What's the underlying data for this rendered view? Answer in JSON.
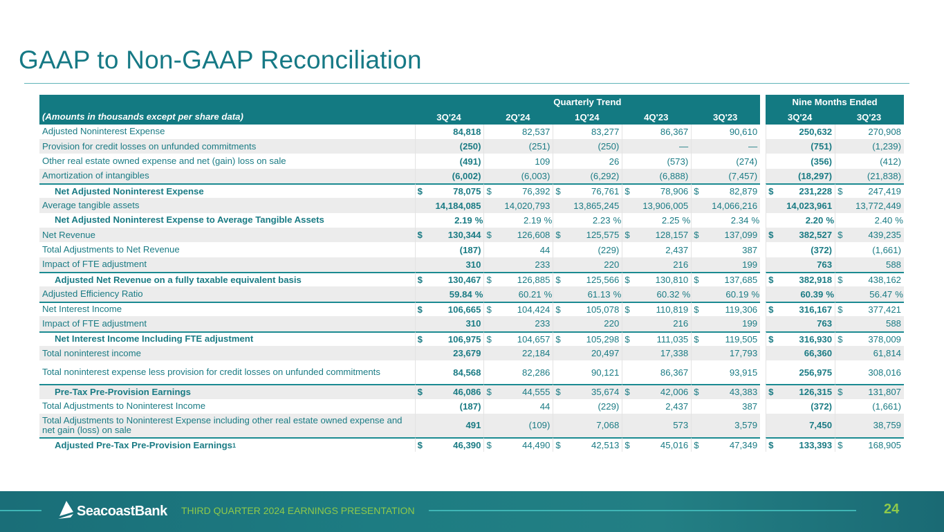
{
  "title": "GAAP to Non-GAAP Reconciliation",
  "table": {
    "group_headers": {
      "quarterly": "Quarterly Trend",
      "nine_months": "Nine Months Ended"
    },
    "units_note": "(Amounts in thousands except per share data)",
    "columns": [
      "3Q'24",
      "2Q'24",
      "1Q'24",
      "4Q'23",
      "3Q'23",
      "3Q'24",
      "3Q'23"
    ],
    "currency_symbol": "$",
    "percent_symbol": "%",
    "rows": [
      {
        "label": "Adjusted Noninterest Expense",
        "values": [
          "84,818",
          "82,537",
          "83,277",
          "86,367",
          "90,610",
          "250,632",
          "270,908"
        ]
      },
      {
        "label": "Provision for credit losses on unfunded commitments",
        "values": [
          "(250)",
          "(251)",
          "(250)",
          "—",
          "—",
          "(751)",
          "(1,239)"
        ]
      },
      {
        "label": "Other real estate owned expense and net (gain) loss on sale",
        "values": [
          "(491)",
          "109",
          "26",
          "(573)",
          "(274)",
          "(356)",
          "(412)"
        ]
      },
      {
        "label": "Amortization of intangibles",
        "values": [
          "(6,002)",
          "(6,003)",
          "(6,292)",
          "(6,888)",
          "(7,457)",
          "(18,297)",
          "(21,838)"
        ]
      },
      {
        "label": "Net Adjusted Noninterest Expense",
        "bold": true,
        "dollar": true,
        "top": true,
        "values": [
          "78,075",
          "76,392",
          "76,761",
          "78,906",
          "82,879",
          "231,228",
          "247,419"
        ]
      },
      {
        "label": "Average tangible assets",
        "values": [
          "14,184,085",
          "14,020,793",
          "13,865,245",
          "13,906,005",
          "14,066,216",
          "14,023,961",
          "13,772,449"
        ]
      },
      {
        "label": "Net Adjusted Noninterest Expense to Average Tangible Assets",
        "bold": true,
        "pct": true,
        "values": [
          "2.19",
          "2.19",
          "2.23",
          "2.25",
          "2.34",
          "2.20",
          "2.40"
        ]
      },
      {
        "label": "Net Revenue",
        "dollar": true,
        "values": [
          "130,344",
          "126,608",
          "125,575",
          "128,157",
          "137,099",
          "382,527",
          "439,235"
        ]
      },
      {
        "label": "Total Adjustments to Net Revenue",
        "values": [
          "(187)",
          "44",
          "(229)",
          "2,437",
          "387",
          "(372)",
          "(1,661)"
        ]
      },
      {
        "label": "Impact of FTE adjustment",
        "values": [
          "310",
          "233",
          "220",
          "216",
          "199",
          "763",
          "588"
        ]
      },
      {
        "label": "Adjusted Net Revenue on a fully taxable equivalent basis",
        "bold": true,
        "dollar": true,
        "top": true,
        "values": [
          "130,467",
          "126,885",
          "125,566",
          "130,810",
          "137,685",
          "382,918",
          "438,162"
        ]
      },
      {
        "label": "Adjusted Efficiency Ratio",
        "pct": true,
        "values": [
          "59.84",
          "60.21",
          "61.13",
          "60.32",
          "60.19",
          "60.39",
          "56.47"
        ]
      },
      {
        "label": "Net Interest Income",
        "dollar": true,
        "top": true,
        "values": [
          "106,665",
          "104,424",
          "105,078",
          "110,819",
          "119,306",
          "316,167",
          "377,421"
        ]
      },
      {
        "label": "Impact of FTE adjustment",
        "values": [
          "310",
          "233",
          "220",
          "216",
          "199",
          "763",
          "588"
        ]
      },
      {
        "label": "Net Interest Income Including FTE adjustment",
        "bold": true,
        "dollar": true,
        "top": true,
        "values": [
          "106,975",
          "104,657",
          "105,298",
          "111,035",
          "119,505",
          "316,930",
          "378,009"
        ]
      },
      {
        "label": "Total noninterest income",
        "values": [
          "23,679",
          "22,184",
          "20,497",
          "17,338",
          "17,793",
          "66,360",
          "61,814"
        ]
      },
      {
        "label": "Total noninterest expense less provision for credit losses on unfunded commitments",
        "tall": true,
        "values": [
          "84,568",
          "82,286",
          "90,121",
          "86,367",
          "93,915",
          "256,975",
          "308,016"
        ]
      },
      {
        "label": "Pre-Tax Pre-Provision Earnings",
        "bold": true,
        "dollar": true,
        "top": true,
        "values": [
          "46,086",
          "44,555",
          "35,674",
          "42,006",
          "43,383",
          "126,315",
          "131,807"
        ]
      },
      {
        "label": "Total Adjustments to Noninterest Income",
        "values": [
          "(187)",
          "44",
          "(229)",
          "2,437",
          "387",
          "(372)",
          "(1,661)"
        ]
      },
      {
        "label": "Total Adjustments to Noninterest Expense including other real estate owned expense and net gain (loss) on sale",
        "tall": true,
        "values": [
          "491",
          "(109)",
          "7,068",
          "573",
          "3,579",
          "7,450",
          "38,759"
        ]
      },
      {
        "label": "Adjusted Pre-Tax Pre-Provision Earnings",
        "sup": "1",
        "bold": true,
        "dollar": true,
        "top": true,
        "values": [
          "46,390",
          "44,490",
          "42,513",
          "45,016",
          "47,349",
          "133,393",
          "168,905"
        ]
      }
    ]
  },
  "footer": {
    "logo_text": "SeacoastBank",
    "presentation": "THIRD QUARTER 2024 EARNINGS PRESENTATION",
    "page": "24"
  }
}
